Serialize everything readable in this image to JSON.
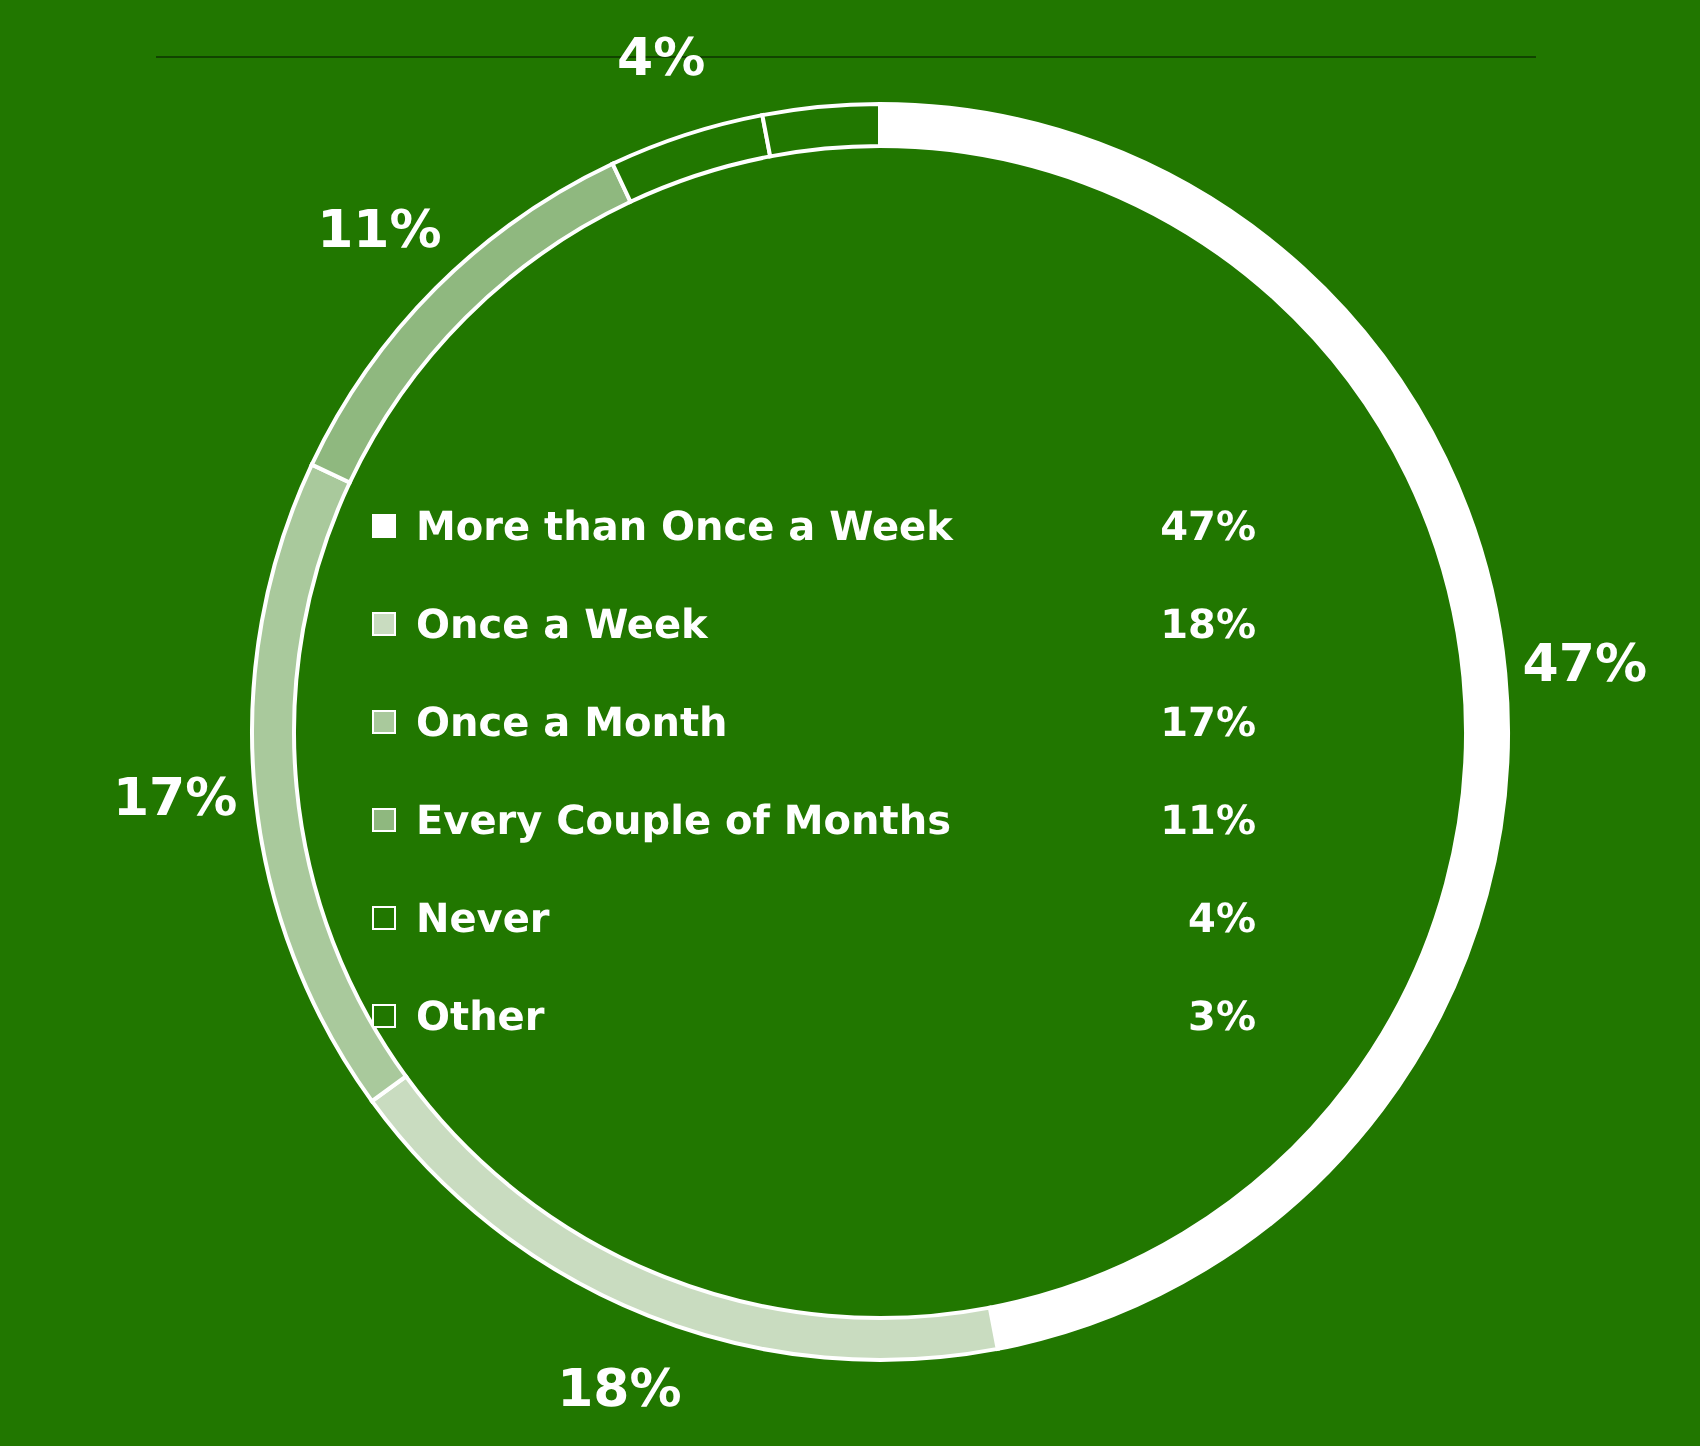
{
  "chart_data": {
    "type": "donut",
    "categories": [
      "More than Once a Week",
      "Once a Week",
      "Once a Month",
      "Every Couple of Months",
      "Never",
      "Other"
    ],
    "values": [
      47,
      18,
      17,
      11,
      4,
      3
    ],
    "value_labels": [
      "47%",
      "18%",
      "17%",
      "11%",
      "4%",
      "3%"
    ],
    "colors": [
      "#ffffff",
      "#c9dcc0",
      "#a9c99c",
      "#8fb87f",
      "#217700",
      "#217700"
    ],
    "data_labels": true,
    "legend": "center"
  }
}
